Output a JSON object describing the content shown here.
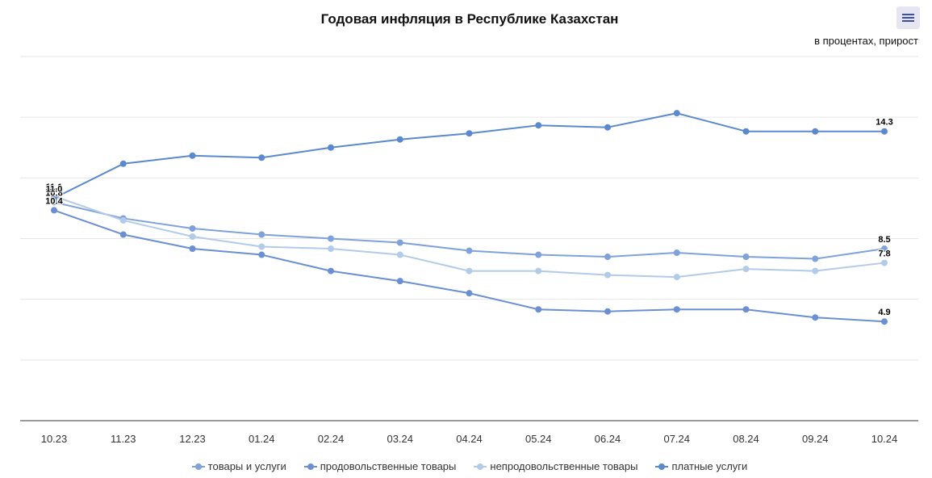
{
  "chart_data": {
    "type": "line",
    "title": "Годовая инфляция в Республике Казахстан",
    "subtitle": "в процентах, прирост",
    "xlabel": "",
    "ylabel": "",
    "categories": [
      "10.23",
      "11.23",
      "12.23",
      "01.24",
      "02.24",
      "03.24",
      "04.24",
      "05.24",
      "06.24",
      "07.24",
      "08.24",
      "09.24",
      "10.24"
    ],
    "ylim": [
      0,
      18
    ],
    "grid": true,
    "legend_position": "bottom",
    "series": [
      {
        "name": "товары и услуги",
        "color": "#7fa2dc",
        "values": [
          10.8,
          10.0,
          9.5,
          9.2,
          9.0,
          8.8,
          8.4,
          8.2,
          8.1,
          8.3,
          8.1,
          8.0,
          8.5
        ],
        "labels": [
          {
            "index": 0,
            "text": "10.8"
          },
          {
            "index": 12,
            "text": "8.5"
          }
        ]
      },
      {
        "name": "продовольственные товары",
        "color": "#6a8fd2",
        "values": [
          10.4,
          9.2,
          8.5,
          8.2,
          7.4,
          6.9,
          6.3,
          5.5,
          5.4,
          5.5,
          5.5,
          5.1,
          4.9
        ],
        "labels": [
          {
            "index": 0,
            "text": "10.4"
          },
          {
            "index": 12,
            "text": "4.9"
          }
        ]
      },
      {
        "name": "непродовольственные товары",
        "color": "#b1cbe8",
        "values": [
          11.1,
          9.9,
          9.1,
          8.6,
          8.5,
          8.2,
          7.4,
          7.4,
          7.2,
          7.1,
          7.5,
          7.4,
          7.8
        ],
        "labels": [
          {
            "index": 0,
            "text": "11.1"
          },
          {
            "index": 12,
            "text": "7.8"
          }
        ]
      },
      {
        "name": "платные услуги",
        "color": "#5b89d0",
        "values": [
          11.0,
          12.7,
          13.1,
          13.0,
          13.5,
          13.9,
          14.2,
          14.6,
          14.5,
          15.2,
          14.3,
          14.3,
          14.3
        ],
        "labels": [
          {
            "index": 0,
            "text": "11.0"
          },
          {
            "index": 12,
            "text": "14.3"
          }
        ]
      }
    ]
  },
  "ui": {
    "menu_icon": "hamburger-menu-icon"
  }
}
